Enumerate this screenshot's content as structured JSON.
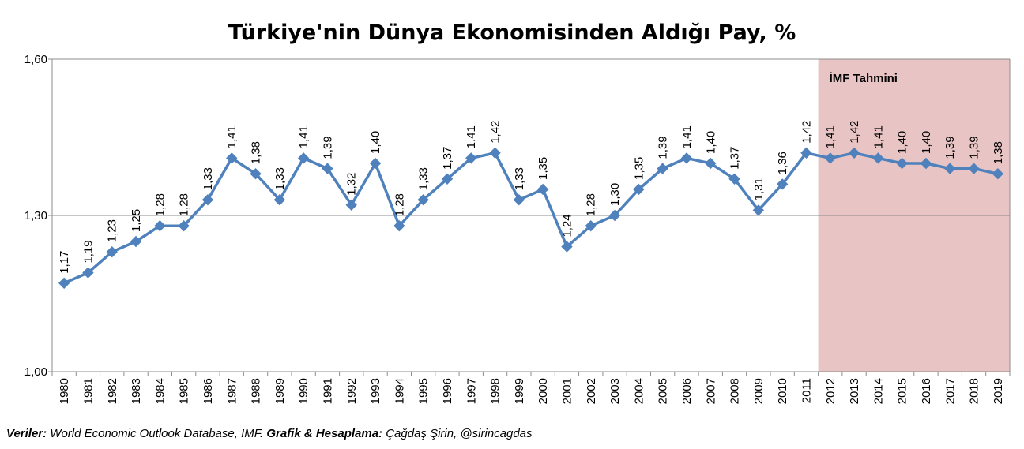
{
  "chart_data": {
    "type": "line",
    "title": "Türkiye'nin Dünya Ekonomisinden Aldığı Pay, %",
    "xlabel": "",
    "ylabel": "",
    "ylim": [
      1.0,
      1.6
    ],
    "yticks": [
      "1,00",
      "1,30",
      "1,60"
    ],
    "grid": "horizontal",
    "categories": [
      "1980",
      "1981",
      "1982",
      "1983",
      "1984",
      "1985",
      "1986",
      "1987",
      "1988",
      "1989",
      "1990",
      "1991",
      "1992",
      "1993",
      "1994",
      "1995",
      "1996",
      "1997",
      "1998",
      "1999",
      "2000",
      "2001",
      "2002",
      "2003",
      "2004",
      "2005",
      "2006",
      "2007",
      "2008",
      "2009",
      "2010",
      "2011",
      "2012",
      "2013",
      "2014",
      "2015",
      "2016",
      "2017",
      "2018",
      "2019"
    ],
    "values": [
      1.17,
      1.19,
      1.23,
      1.25,
      1.28,
      1.28,
      1.33,
      1.41,
      1.38,
      1.33,
      1.41,
      1.39,
      1.32,
      1.4,
      1.28,
      1.33,
      1.37,
      1.41,
      1.42,
      1.33,
      1.35,
      1.24,
      1.28,
      1.3,
      1.35,
      1.39,
      1.41,
      1.4,
      1.37,
      1.31,
      1.36,
      1.42,
      1.41,
      1.42,
      1.41,
      1.4,
      1.4,
      1.39,
      1.39,
      1.38
    ],
    "labels": [
      "1,17",
      "1,19",
      "1,23",
      "1,25",
      "1,28",
      "1,28",
      "1,33",
      "1,41",
      "1,38",
      "1,33",
      "1,41",
      "1,39",
      "1,32",
      "1,40",
      "1,28",
      "1,33",
      "1,37",
      "1,41",
      "1,42",
      "1,33",
      "1,35",
      "1,24",
      "1,28",
      "1,30",
      "1,35",
      "1,39",
      "1,41",
      "1,40",
      "1,37",
      "1,31",
      "1,36",
      "1,42",
      "1,41",
      "1,42",
      "1,41",
      "1,40",
      "1,40",
      "1,39",
      "1,39",
      "1,38"
    ],
    "forecast_region": {
      "from": "2012",
      "to": "2019",
      "label": "İMF Tahmini",
      "color": "#e8c4c4"
    },
    "line_color": "#4f81bd"
  },
  "footer": {
    "data_label": "Veriler:",
    "data_text": " World Economic Outlook Database, IMF.  ",
    "credit_label": "Grafik & Hesaplama:",
    "credit_text": " Çağdaş Şirin, @sirincagdas"
  }
}
